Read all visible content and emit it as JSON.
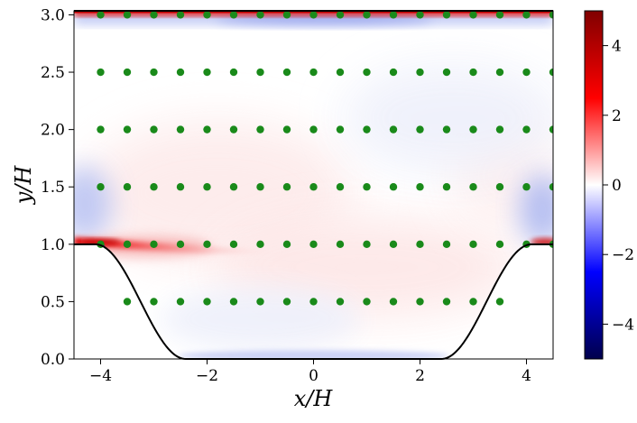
{
  "chart_data": {
    "type": "heatmap",
    "title": "",
    "xlabel": "x/H",
    "ylabel": "y/H",
    "xlim": [
      -4.5,
      4.5
    ],
    "ylim": [
      0.0,
      3.035
    ],
    "x_ticks": [
      -4,
      -2,
      0,
      2,
      4
    ],
    "x_tick_labels": [
      "−4",
      "−2",
      "0",
      "2",
      "4"
    ],
    "y_ticks": [
      0.0,
      0.5,
      1.0,
      1.5,
      2.0,
      2.5,
      3.0
    ],
    "y_tick_labels": [
      "0.0",
      "0.5",
      "1.0",
      "1.5",
      "2.0",
      "2.5",
      "3.0"
    ],
    "colorbar": {
      "range": [
        -5,
        5
      ],
      "ticks": [
        -4,
        -2,
        0,
        2,
        4
      ],
      "tick_labels": [
        "−4",
        "−2",
        "0",
        "2",
        "4"
      ],
      "colormap": "seismic",
      "colors": {
        "min": "#00004c",
        "low": "#0000ff",
        "mid": "#ffffff",
        "high": "#ff0000",
        "max": "#800000"
      }
    },
    "hill_profile": {
      "description_points": [
        [
          -4.5,
          1.0
        ],
        [
          -4.1,
          1.0
        ],
        [
          -3.6,
          0.6
        ],
        [
          -3.0,
          0.22
        ],
        [
          -2.6,
          0.03
        ],
        [
          -2.4,
          0.0
        ],
        [
          2.4,
          0.0
        ],
        [
          2.6,
          0.03
        ],
        [
          3.0,
          0.22
        ],
        [
          3.6,
          0.6
        ],
        [
          4.1,
          1.0
        ],
        [
          4.5,
          1.0
        ]
      ],
      "color": "#000000"
    },
    "top_wall_y": 3.035,
    "probe_points": {
      "color": "#1a8a1a",
      "rows": [
        {
          "y": 0.5,
          "x": [
            -3.5,
            -3.0,
            -2.5,
            -2.0,
            -1.5,
            -1.0,
            -0.5,
            0.0,
            0.5,
            1.0,
            1.5,
            2.0,
            2.5,
            3.0,
            3.5
          ]
        },
        {
          "y": 1.0,
          "x": [
            -4.0,
            -3.5,
            -3.0,
            -2.5,
            -2.0,
            -1.5,
            -1.0,
            -0.5,
            0.0,
            0.5,
            1.0,
            1.5,
            2.0,
            2.5,
            3.0,
            3.5,
            4.0,
            4.5
          ]
        },
        {
          "y": 1.5,
          "x": [
            -4.0,
            -3.5,
            -3.0,
            -2.5,
            -2.0,
            -1.5,
            -1.0,
            -0.5,
            0.0,
            0.5,
            1.0,
            1.5,
            2.0,
            2.5,
            3.0,
            3.5,
            4.0,
            4.5
          ]
        },
        {
          "y": 2.0,
          "x": [
            -4.0,
            -3.5,
            -3.0,
            -2.5,
            -2.0,
            -1.5,
            -1.0,
            -0.5,
            0.0,
            0.5,
            1.0,
            1.5,
            2.0,
            2.5,
            3.0,
            3.5,
            4.0,
            4.5
          ]
        },
        {
          "y": 2.5,
          "x": [
            -4.0,
            -3.5,
            -3.0,
            -2.5,
            -2.0,
            -1.5,
            -1.0,
            -0.5,
            0.0,
            0.5,
            1.0,
            1.5,
            2.0,
            2.5,
            3.0,
            3.5,
            4.0,
            4.5
          ]
        },
        {
          "y": 3.0,
          "x": [
            -4.0,
            -3.5,
            -3.0,
            -2.5,
            -2.0,
            -1.5,
            -1.0,
            -0.5,
            0.0,
            0.5,
            1.0,
            1.5,
            2.0,
            2.5,
            3.0,
            3.5,
            4.0,
            4.5
          ]
        }
      ]
    },
    "field_features": [
      {
        "kind": "shear-layer-positive",
        "x": [
          -4.5,
          -0.5
        ],
        "y_center": 1.0,
        "peak": 4.0
      },
      {
        "kind": "wall-layer-positive",
        "x": [
          -4.5,
          4.5
        ],
        "y": 3.02,
        "peak": 4.5
      },
      {
        "kind": "wall-layer-negative",
        "x": [
          -4.5,
          4.5
        ],
        "y": 2.98,
        "peak": -1.5
      },
      {
        "kind": "hill-crest-negative",
        "x": [
          -4.5,
          -3.6
        ],
        "y_center": 1.3,
        "peak": -0.8
      },
      {
        "kind": "hill-crest-negative",
        "x": [
          3.6,
          4.5
        ],
        "y_center": 1.25,
        "peak": -0.8
      },
      {
        "kind": "bottom-wall-negative",
        "x": [
          -2.6,
          2.6
        ],
        "y": 0.02,
        "peak": -0.6
      }
    ]
  }
}
